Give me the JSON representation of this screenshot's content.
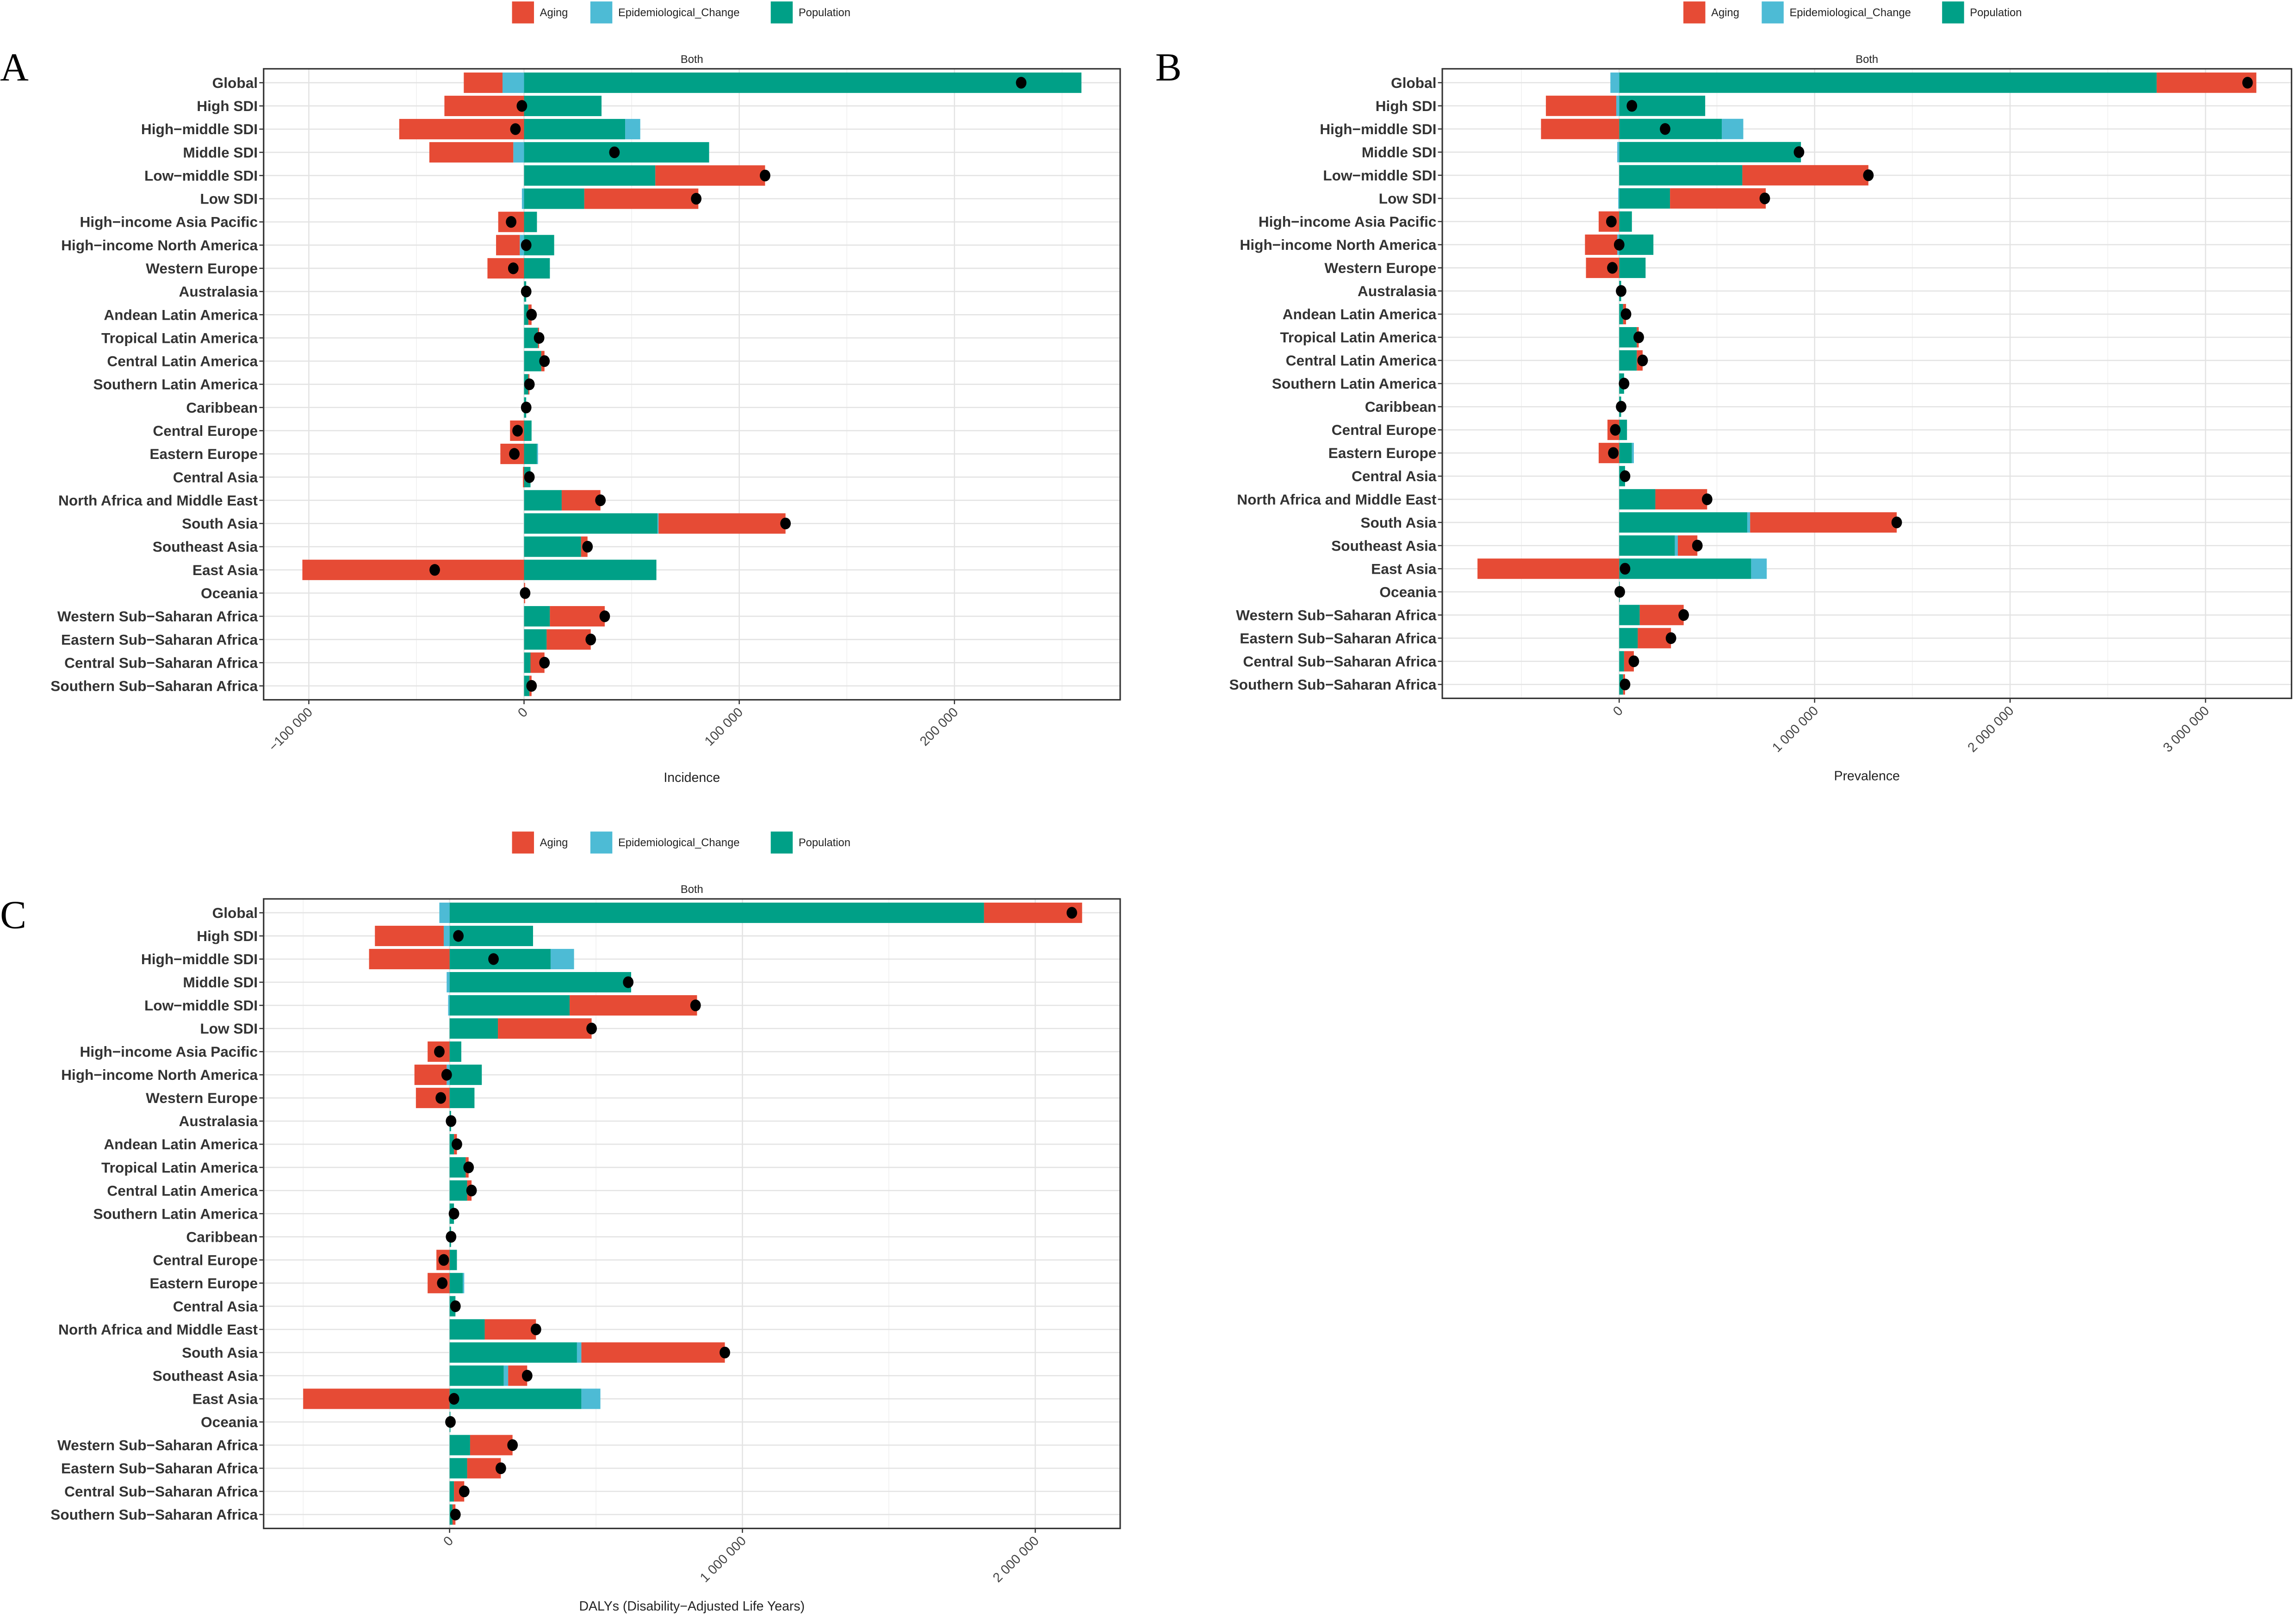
{
  "colors": {
    "Aging": "#E64B35",
    "Epidemiological_Change": "#4DBBD5",
    "Population": "#00A087",
    "total": "#000000"
  },
  "chart_data": [
    {
      "panel": "A",
      "type": "bar",
      "orientation": "horizontal",
      "stacked": true,
      "strip": "Both",
      "xlabel": "Incidence",
      "legend": [
        "Aging",
        "Epidemiological_Change",
        "Population"
      ],
      "legend_position": "top",
      "xlim": [
        -121000,
        277000
      ],
      "xticks": [
        -100000,
        0,
        100000,
        200000
      ],
      "xtick_labels": [
        "−100 000",
        "0",
        "100 000",
        "200 000"
      ],
      "categories": [
        "Global",
        "High SDI",
        "High−middle SDI",
        "Middle SDI",
        "Low−middle SDI",
        "Low SDI",
        "High−income Asia Pacific",
        "High−income North America",
        "Western Europe",
        "Australasia",
        "Andean Latin America",
        "Tropical Latin America",
        "Central Latin America",
        "Southern Latin America",
        "Caribbean",
        "Central Europe",
        "Eastern Europe",
        "Central Asia",
        "North Africa and Middle East",
        "South Asia",
        "Southeast Asia",
        "East Asia",
        "Oceania",
        "Western Sub−Saharan Africa",
        "Eastern Sub−Saharan Africa",
        "Central Sub−Saharan Africa",
        "Southern Sub−Saharan Africa"
      ],
      "series": [
        {
          "name": "Aging",
          "values": [
            -18000,
            -37000,
            -58000,
            -39000,
            51000,
            53000,
            -12000,
            -11000,
            -17000,
            0,
            1500,
            500,
            1500,
            500,
            0,
            -6500,
            -11000,
            -500,
            18000,
            59000,
            3000,
            -103000,
            500,
            25500,
            20500,
            6500,
            1000
          ]
        },
        {
          "name": "Epidemiological_Change",
          "values": [
            -10000,
            0,
            7000,
            -5000,
            0,
            -1000,
            0,
            -2000,
            0,
            0,
            0,
            0,
            0,
            0,
            0,
            0,
            500,
            0,
            0,
            500,
            0,
            0,
            0,
            0,
            0,
            0,
            0
          ]
        },
        {
          "name": "Population",
          "values": [
            259000,
            36000,
            47000,
            86000,
            61000,
            28000,
            6000,
            14000,
            12000,
            1000,
            2000,
            6500,
            8000,
            2000,
            1000,
            3500,
            6000,
            3000,
            17500,
            62000,
            26500,
            61500,
            0,
            12000,
            10500,
            3000,
            2500
          ]
        }
      ],
      "total": [
        231000,
        -1000,
        -4000,
        42000,
        112000,
        80000,
        -6000,
        1000,
        -5000,
        1000,
        3500,
        7000,
        9500,
        2500,
        1000,
        -3000,
        -4500,
        2500,
        35500,
        121500,
        29500,
        -41500,
        500,
        37500,
        31000,
        9500,
        3500
      ]
    },
    {
      "panel": "B",
      "type": "bar",
      "orientation": "horizontal",
      "stacked": true,
      "strip": "Both",
      "xlabel": "Prevalence",
      "legend": [
        "Aging",
        "Epidemiological_Change",
        "Population"
      ],
      "legend_position": "top",
      "xlim": [
        -905000,
        3440000
      ],
      "xticks": [
        0,
        1000000,
        2000000,
        3000000
      ],
      "xtick_labels": [
        "0",
        "1 000 000",
        "2 000 000",
        "3 000 000"
      ],
      "categories": [
        "Global",
        "High SDI",
        "High−middle SDI",
        "Middle SDI",
        "Low−middle SDI",
        "Low SDI",
        "High−income Asia Pacific",
        "High−income North America",
        "Western Europe",
        "Australasia",
        "Andean Latin America",
        "Tropical Latin America",
        "Central Latin America",
        "Southern Latin America",
        "Caribbean",
        "Central Europe",
        "Eastern Europe",
        "Central Asia",
        "North Africa and Middle East",
        "South Asia",
        "Southeast Asia",
        "East Asia",
        "Oceania",
        "Western Sub−Saharan Africa",
        "Eastern Sub−Saharan Africa",
        "Central Sub−Saharan Africa",
        "Southern Sub−Saharan Africa"
      ],
      "series": [
        {
          "name": "Aging",
          "values": [
            510000,
            -360000,
            -400000,
            0,
            645000,
            490000,
            -105000,
            -165000,
            -170000,
            0,
            15000,
            10000,
            30000,
            0,
            0,
            -60000,
            -105000,
            0,
            265000,
            750000,
            100000,
            -725000,
            0,
            225000,
            170000,
            50000,
            10000
          ]
        },
        {
          "name": "Epidemiological_Change",
          "values": [
            -45000,
            -15000,
            110000,
            -10000,
            0,
            -5000,
            0,
            -10000,
            0,
            0,
            0,
            0,
            0,
            0,
            0,
            0,
            10000,
            0,
            0,
            15000,
            15000,
            80000,
            0,
            0,
            0,
            0,
            0
          ]
        },
        {
          "name": "Population",
          "values": [
            2750000,
            440000,
            525000,
            930000,
            630000,
            260000,
            65000,
            175000,
            135000,
            10000,
            20000,
            90000,
            90000,
            25000,
            10000,
            40000,
            65000,
            30000,
            185000,
            655000,
            285000,
            675000,
            3000,
            105000,
            95000,
            25000,
            20000
          ]
        }
      ],
      "total": [
        3215000,
        65000,
        235000,
        920000,
        1275000,
        745000,
        -40000,
        0,
        -35000,
        10000,
        35000,
        100000,
        120000,
        25000,
        10000,
        -20000,
        -30000,
        30000,
        450000,
        1420000,
        400000,
        30000,
        3000,
        330000,
        265000,
        75000,
        30000
      ]
    },
    {
      "panel": "C",
      "type": "bar",
      "orientation": "horizontal",
      "stacked": true,
      "strip": "Both",
      "xlabel": "DALYs (Disability−Adjusted Life Years)",
      "legend": [
        "Aging",
        "Epidemiological_Change",
        "Population"
      ],
      "legend_position": "top",
      "xlim": [
        -635000,
        2290000
      ],
      "xticks": [
        0,
        1000000,
        2000000
      ],
      "xtick_labels": [
        "0",
        "1 000 000",
        "2 000 000"
      ],
      "categories": [
        "Global",
        "High SDI",
        "High−middle SDI",
        "Middle SDI",
        "Low−middle SDI",
        "Low SDI",
        "High−income Asia Pacific",
        "High−income North America",
        "Western Europe",
        "Australasia",
        "Andean Latin America",
        "Tropical Latin America",
        "Central Latin America",
        "Southern Latin America",
        "Caribbean",
        "Central Europe",
        "Eastern Europe",
        "Central Asia",
        "North Africa and Middle East",
        "South Asia",
        "Southeast Asia",
        "East Asia",
        "Oceania",
        "Western Sub−Saharan Africa",
        "Eastern Sub−Saharan Africa",
        "Central Sub−Saharan Africa",
        "Southern Sub−Saharan Africa"
      ],
      "series": [
        {
          "name": "Aging",
          "values": [
            335000,
            -235000,
            -275000,
            0,
            435000,
            320000,
            -75000,
            -110000,
            -115000,
            0,
            10000,
            10000,
            15000,
            0,
            0,
            -45000,
            -75000,
            0,
            175000,
            490000,
            65000,
            -500000,
            0,
            145000,
            115000,
            35000,
            10000
          ]
        },
        {
          "name": "Epidemiological_Change",
          "values": [
            -35000,
            -20000,
            80000,
            -10000,
            -5000,
            0,
            0,
            -10000,
            0,
            0,
            0,
            0,
            0,
            0,
            0,
            0,
            5000,
            0,
            0,
            15000,
            15000,
            65000,
            0,
            0,
            0,
            0,
            0
          ]
        },
        {
          "name": "Population",
          "values": [
            1825000,
            285000,
            345000,
            620000,
            410000,
            165000,
            40000,
            110000,
            85000,
            5000,
            15000,
            55000,
            60000,
            15000,
            5000,
            25000,
            45000,
            20000,
            120000,
            435000,
            185000,
            450000,
            3000,
            70000,
            60000,
            15000,
            10000
          ]
        }
      ],
      "total": [
        2125000,
        30000,
        150000,
        610000,
        840000,
        485000,
        -35000,
        -10000,
        -30000,
        5000,
        25000,
        65000,
        75000,
        15000,
        5000,
        -20000,
        -25000,
        20000,
        295000,
        940000,
        265000,
        15000,
        3000,
        215000,
        175000,
        50000,
        20000
      ]
    }
  ]
}
